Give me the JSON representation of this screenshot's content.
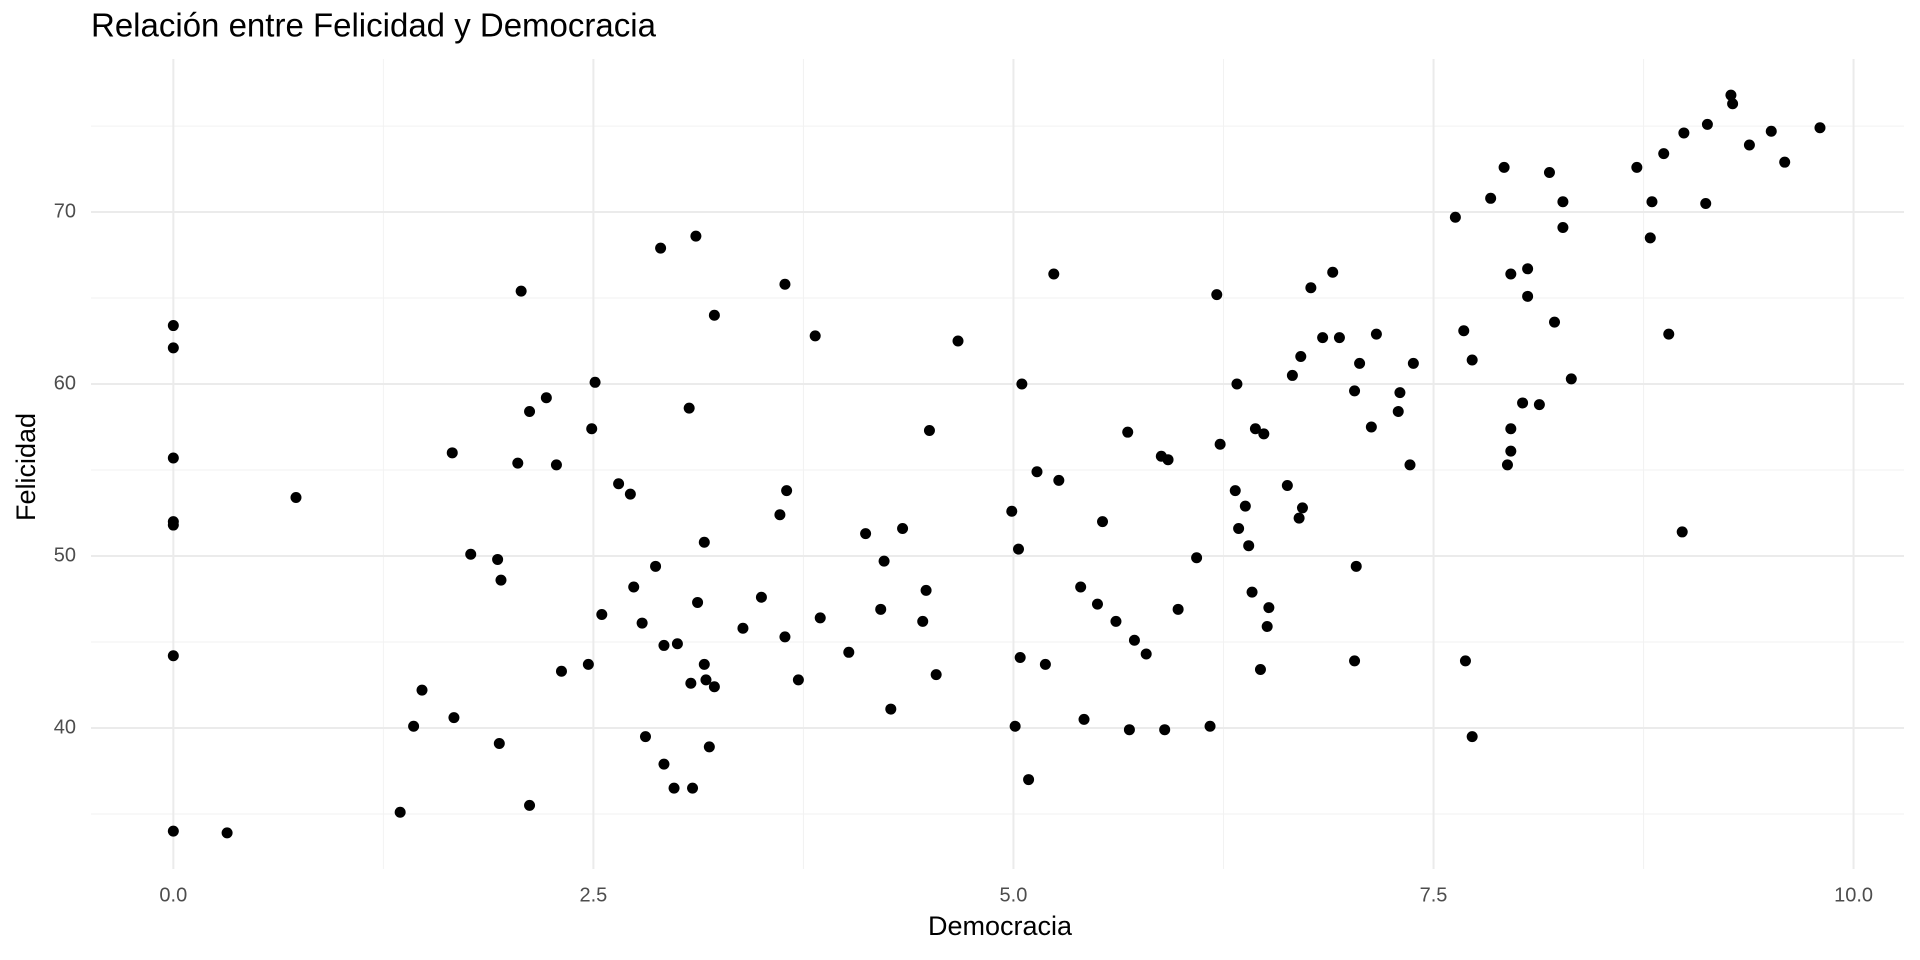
{
  "chart_data": {
    "type": "scatter",
    "title": "Relación entre Felicidad y Democracia",
    "xlabel": "Democracia",
    "ylabel": "Felicidad",
    "color": "#000000",
    "grid": true,
    "xlim": [
      -0.49,
      10.3
    ],
    "ylim": [
      31.8,
      78.9
    ],
    "xticks": [
      {
        "value": 0,
        "label": "0.0"
      },
      2.5,
      {
        "value": 5,
        "label": "5.0"
      },
      7.5,
      {
        "value": 10,
        "label": "10.0"
      }
    ],
    "yticks": [
      40,
      50,
      60,
      70
    ],
    "xminor": [
      1.25,
      3.75,
      6.25,
      8.75
    ],
    "yminor": [
      35,
      45,
      55,
      65,
      75
    ],
    "x": [
      0,
      0,
      0,
      0,
      0,
      0,
      0,
      0.32,
      0.73,
      1.35,
      1.43,
      1.48,
      1.66,
      1.67,
      1.77,
      1.93,
      1.95,
      1.94,
      2.07,
      2.05,
      2.12,
      2.12,
      2.22,
      2.28,
      2.31,
      2.47,
      2.49,
      2.51,
      2.55,
      2.65,
      2.72,
      2.74,
      2.79,
      2.81,
      2.87,
      2.9,
      2.92,
      2.92,
      2.98,
      3.0,
      3.07,
      3.08,
      3.09,
      3.11,
      3.12,
      3.16,
      3.16,
      3.17,
      3.22,
      3.19,
      3.22,
      3.39,
      3.5,
      3.61,
      3.64,
      3.64,
      3.65,
      3.72,
      3.82,
      3.85,
      4.02,
      4.12,
      4.21,
      4.23,
      4.27,
      4.34,
      4.46,
      4.48,
      4.5,
      4.54,
      4.67,
      4.99,
      5.01,
      5.03,
      5.04,
      5.05,
      5.09,
      5.14,
      5.19,
      5.24,
      5.27,
      5.4,
      5.42,
      5.5,
      5.53,
      5.61,
      5.68,
      5.69,
      5.72,
      5.79,
      5.88,
      5.92,
      5.9,
      5.98,
      6.09,
      6.17,
      6.21,
      6.23,
      6.32,
      6.33,
      6.34,
      6.38,
      6.4,
      6.42,
      6.44,
      6.47,
      6.49,
      6.52,
      6.51,
      6.63,
      6.66,
      6.71,
      6.7,
      6.72,
      6.77,
      6.84,
      6.9,
      6.94,
      7.03,
      7.04,
      7.03,
      7.06,
      7.13,
      7.16,
      7.3,
      7.29,
      7.36,
      7.38,
      7.63,
      7.68,
      7.69,
      7.73,
      7.73,
      7.84,
      7.92,
      7.94,
      7.96,
      7.96,
      7.96,
      8.03,
      8.06,
      8.06,
      8.13,
      8.19,
      8.22,
      8.27,
      8.27,
      8.32,
      8.71,
      8.79,
      8.8,
      8.87,
      8.9,
      8.98,
      8.99,
      9.13,
      9.12,
      9.27,
      9.28,
      9.38,
      9.51,
      9.59,
      9.8
    ],
    "values": [
      63.4,
      62.1,
      55.7,
      52.0,
      51.8,
      44.2,
      34.0,
      33.9,
      53.4,
      35.1,
      40.1,
      42.2,
      56.0,
      40.6,
      50.1,
      49.8,
      48.6,
      39.1,
      65.4,
      55.4,
      58.4,
      35.5,
      59.2,
      55.3,
      43.3,
      43.7,
      57.4,
      60.1,
      46.6,
      54.2,
      53.6,
      48.2,
      46.1,
      39.5,
      49.4,
      67.9,
      37.9,
      44.8,
      36.5,
      44.9,
      58.6,
      42.6,
      36.5,
      68.6,
      47.3,
      50.8,
      43.7,
      42.8,
      42.4,
      38.9,
      64.0,
      45.8,
      47.6,
      52.4,
      45.3,
      65.8,
      53.8,
      42.8,
      62.8,
      46.4,
      44.4,
      51.3,
      46.9,
      49.7,
      41.1,
      51.6,
      46.2,
      48.0,
      57.3,
      43.1,
      62.5,
      52.6,
      40.1,
      50.4,
      44.1,
      60.0,
      37.0,
      54.9,
      43.7,
      66.4,
      54.4,
      48.2,
      40.5,
      47.2,
      52.0,
      46.2,
      57.2,
      39.9,
      45.1,
      44.3,
      55.8,
      55.6,
      39.9,
      46.9,
      49.9,
      40.1,
      65.2,
      56.5,
      53.8,
      60.0,
      51.6,
      52.9,
      50.6,
      47.9,
      57.4,
      43.4,
      57.1,
      47.0,
      45.9,
      54.1,
      60.5,
      61.6,
      52.2,
      52.8,
      65.6,
      62.7,
      66.5,
      62.7,
      59.6,
      49.4,
      43.9,
      61.2,
      57.5,
      62.9,
      59.5,
      58.4,
      55.3,
      61.2,
      69.7,
      63.1,
      43.9,
      61.4,
      39.5,
      70.8,
      72.6,
      55.3,
      57.4,
      56.1,
      66.4,
      58.9,
      66.7,
      65.1,
      58.8,
      72.3,
      63.6,
      70.6,
      69.1,
      60.3,
      72.6,
      68.5,
      70.6,
      73.4,
      62.9,
      51.4,
      74.6,
      75.1,
      70.5,
      76.8,
      76.3,
      73.9,
      74.7,
      72.9,
      74.9
    ]
  }
}
